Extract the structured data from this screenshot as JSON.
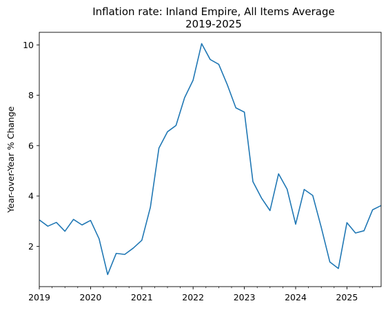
{
  "chart_data": {
    "type": "line",
    "title": "Inflation rate: Inland Empire, All Items Average",
    "subtitle": "2019-2025",
    "xlabel": "",
    "ylabel": "Year-over-Year % Change",
    "xlim": [
      "2019-01",
      "2025-09"
    ],
    "ylim": [
      0.4,
      10.5
    ],
    "yticks": [
      2,
      4,
      6,
      8,
      10
    ],
    "xticks": [
      "2019",
      "2020",
      "2021",
      "2022",
      "2023",
      "2024",
      "2025"
    ],
    "grid": false,
    "legend": "none",
    "color": "#1f77b4",
    "series": [
      {
        "x": [
          "2019-01",
          "2019-03",
          "2019-05",
          "2019-07",
          "2019-09",
          "2019-11",
          "2020-01",
          "2020-03",
          "2020-05",
          "2020-07",
          "2020-09",
          "2020-11",
          "2021-01",
          "2021-03",
          "2021-05",
          "2021-07",
          "2021-09",
          "2021-11",
          "2022-01",
          "2022-03",
          "2022-05",
          "2022-07",
          "2022-09",
          "2022-11",
          "2023-01",
          "2023-03",
          "2023-05",
          "2023-07",
          "2023-09",
          "2023-11",
          "2024-01",
          "2024-03",
          "2024-05",
          "2024-07",
          "2024-09",
          "2024-11",
          "2025-01",
          "2025-03",
          "2025-05",
          "2025-07",
          "2025-09"
        ],
        "values": [
          3.05,
          2.8,
          2.95,
          2.6,
          3.07,
          2.85,
          3.03,
          2.3,
          0.88,
          1.72,
          1.68,
          1.93,
          2.24,
          3.55,
          5.9,
          6.55,
          6.8,
          7.9,
          8.6,
          10.05,
          9.42,
          9.23,
          8.42,
          7.5,
          7.33,
          4.57,
          3.92,
          3.42,
          4.88,
          4.27,
          2.88,
          4.26,
          4.02,
          2.75,
          1.38,
          1.12,
          2.94,
          2.53,
          2.62,
          3.45,
          3.62
        ]
      }
    ]
  }
}
